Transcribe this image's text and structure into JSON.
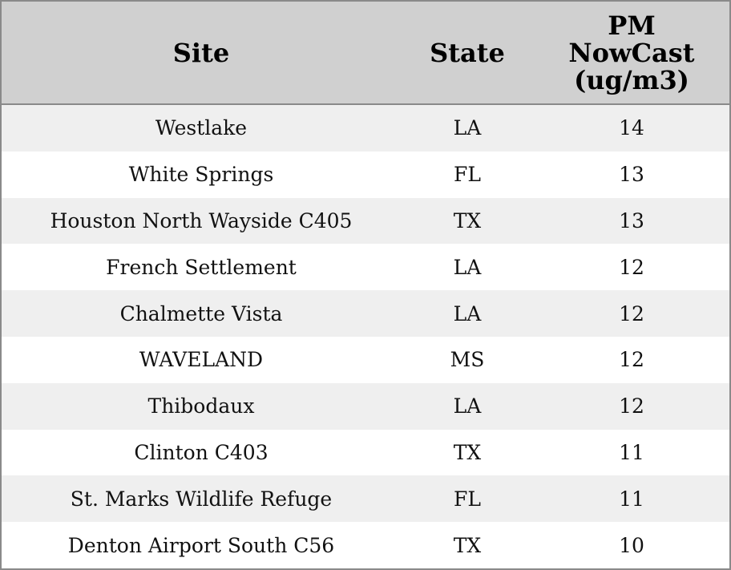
{
  "table": {
    "header": [
      "Site",
      "State",
      "PM NowCast (ug/m3)"
    ],
    "rows": [
      [
        "Westlake",
        "LA",
        14
      ],
      [
        "White Springs",
        "FL",
        13
      ],
      [
        "Houston North Wayside C405",
        "TX",
        13
      ],
      [
        "French Settlement",
        "LA",
        12
      ],
      [
        "Chalmette Vista",
        "LA",
        12
      ],
      [
        "WAVELAND",
        "MS",
        12
      ],
      [
        "Thibodaux",
        "LA",
        12
      ],
      [
        "Clinton C403",
        "TX",
        11
      ],
      [
        "St. Marks Wildlife Refuge",
        "FL",
        11
      ],
      [
        "Denton Airport South C56",
        "TX",
        10
      ]
    ]
  }
}
